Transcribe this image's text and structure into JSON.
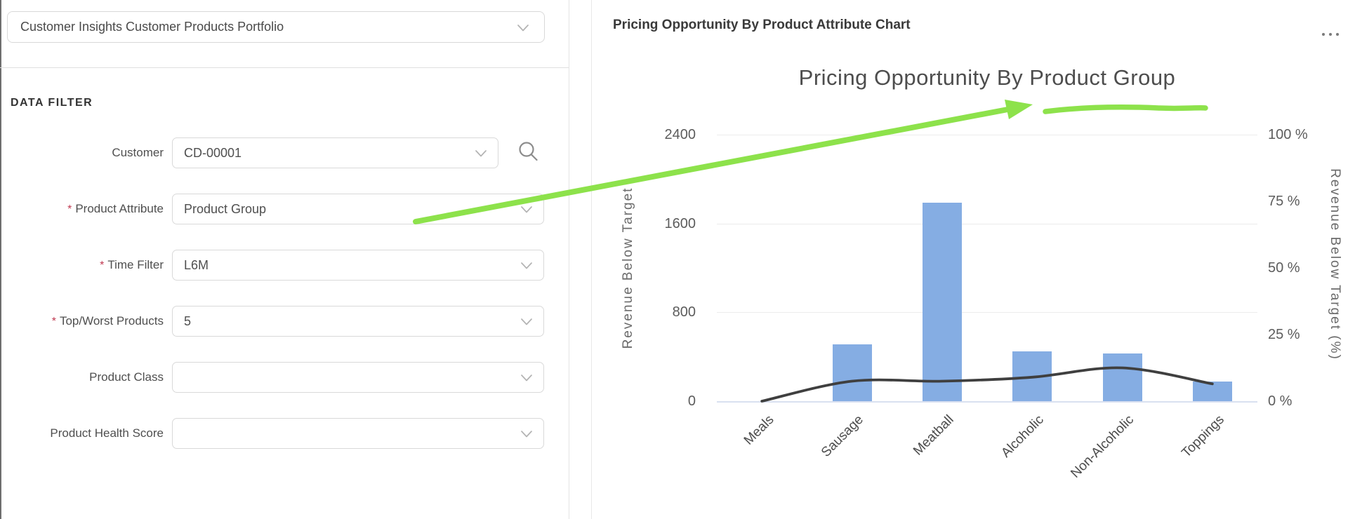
{
  "portfolio_selector": {
    "value": "Customer Insights Customer Products Portfolio"
  },
  "filter_panel": {
    "title": "DATA FILTER",
    "fields": [
      {
        "label": "Customer",
        "value": "CD-00001",
        "required": false,
        "has_search": true
      },
      {
        "label": "Product Attribute",
        "value": "Product Group",
        "required": true,
        "has_search": false
      },
      {
        "label": "Time Filter",
        "value": "L6M",
        "required": true,
        "has_search": false
      },
      {
        "label": "Top/Worst Products",
        "value": "5",
        "required": true,
        "has_search": false
      },
      {
        "label": "Product Class",
        "value": "",
        "required": false,
        "has_search": false
      },
      {
        "label": "Product Health Score",
        "value": "",
        "required": false,
        "has_search": false
      }
    ]
  },
  "chart_panel": {
    "header": "Pricing Opportunity By Product Attribute Chart",
    "menu_icon": "ellipsis-more-options"
  },
  "chart_data": {
    "type": "bar",
    "title": "Pricing Opportunity By Product Group",
    "categories": [
      "Meals",
      "Sausage",
      "Meatball",
      "Alcoholic",
      "Non-Alcoholic",
      "Toppings"
    ],
    "series": [
      {
        "name": "Revenue Below Target",
        "type": "bar",
        "axis": "left",
        "color": "#85ade3",
        "values": [
          0,
          510,
          1790,
          450,
          430,
          180
        ]
      },
      {
        "name": "Revenue Below Target (%)",
        "type": "line",
        "axis": "right",
        "color": "#3f3f3f",
        "values": [
          0,
          7.5,
          7.5,
          9,
          12.5,
          6.5
        ]
      }
    ],
    "left_axis": {
      "label": "Revenue Below Target",
      "ticks": [
        0,
        800,
        1600,
        2400
      ],
      "max": 2400,
      "suffix": ""
    },
    "right_axis": {
      "label": "Revenue Below Target (%)",
      "ticks": [
        0,
        25,
        50,
        75,
        100
      ],
      "max": 100,
      "suffix": " %"
    },
    "grid": true,
    "legend": "none",
    "category_label_rotation": -45
  },
  "annotation": {
    "color": "#8DE24B",
    "arrow_from": "Product Attribute field",
    "arrow_to": "chart title words 'Product Group'",
    "underlined_text": "Product Group"
  },
  "icons": {
    "search": "magnifier",
    "dropdown": "chevron-down"
  }
}
